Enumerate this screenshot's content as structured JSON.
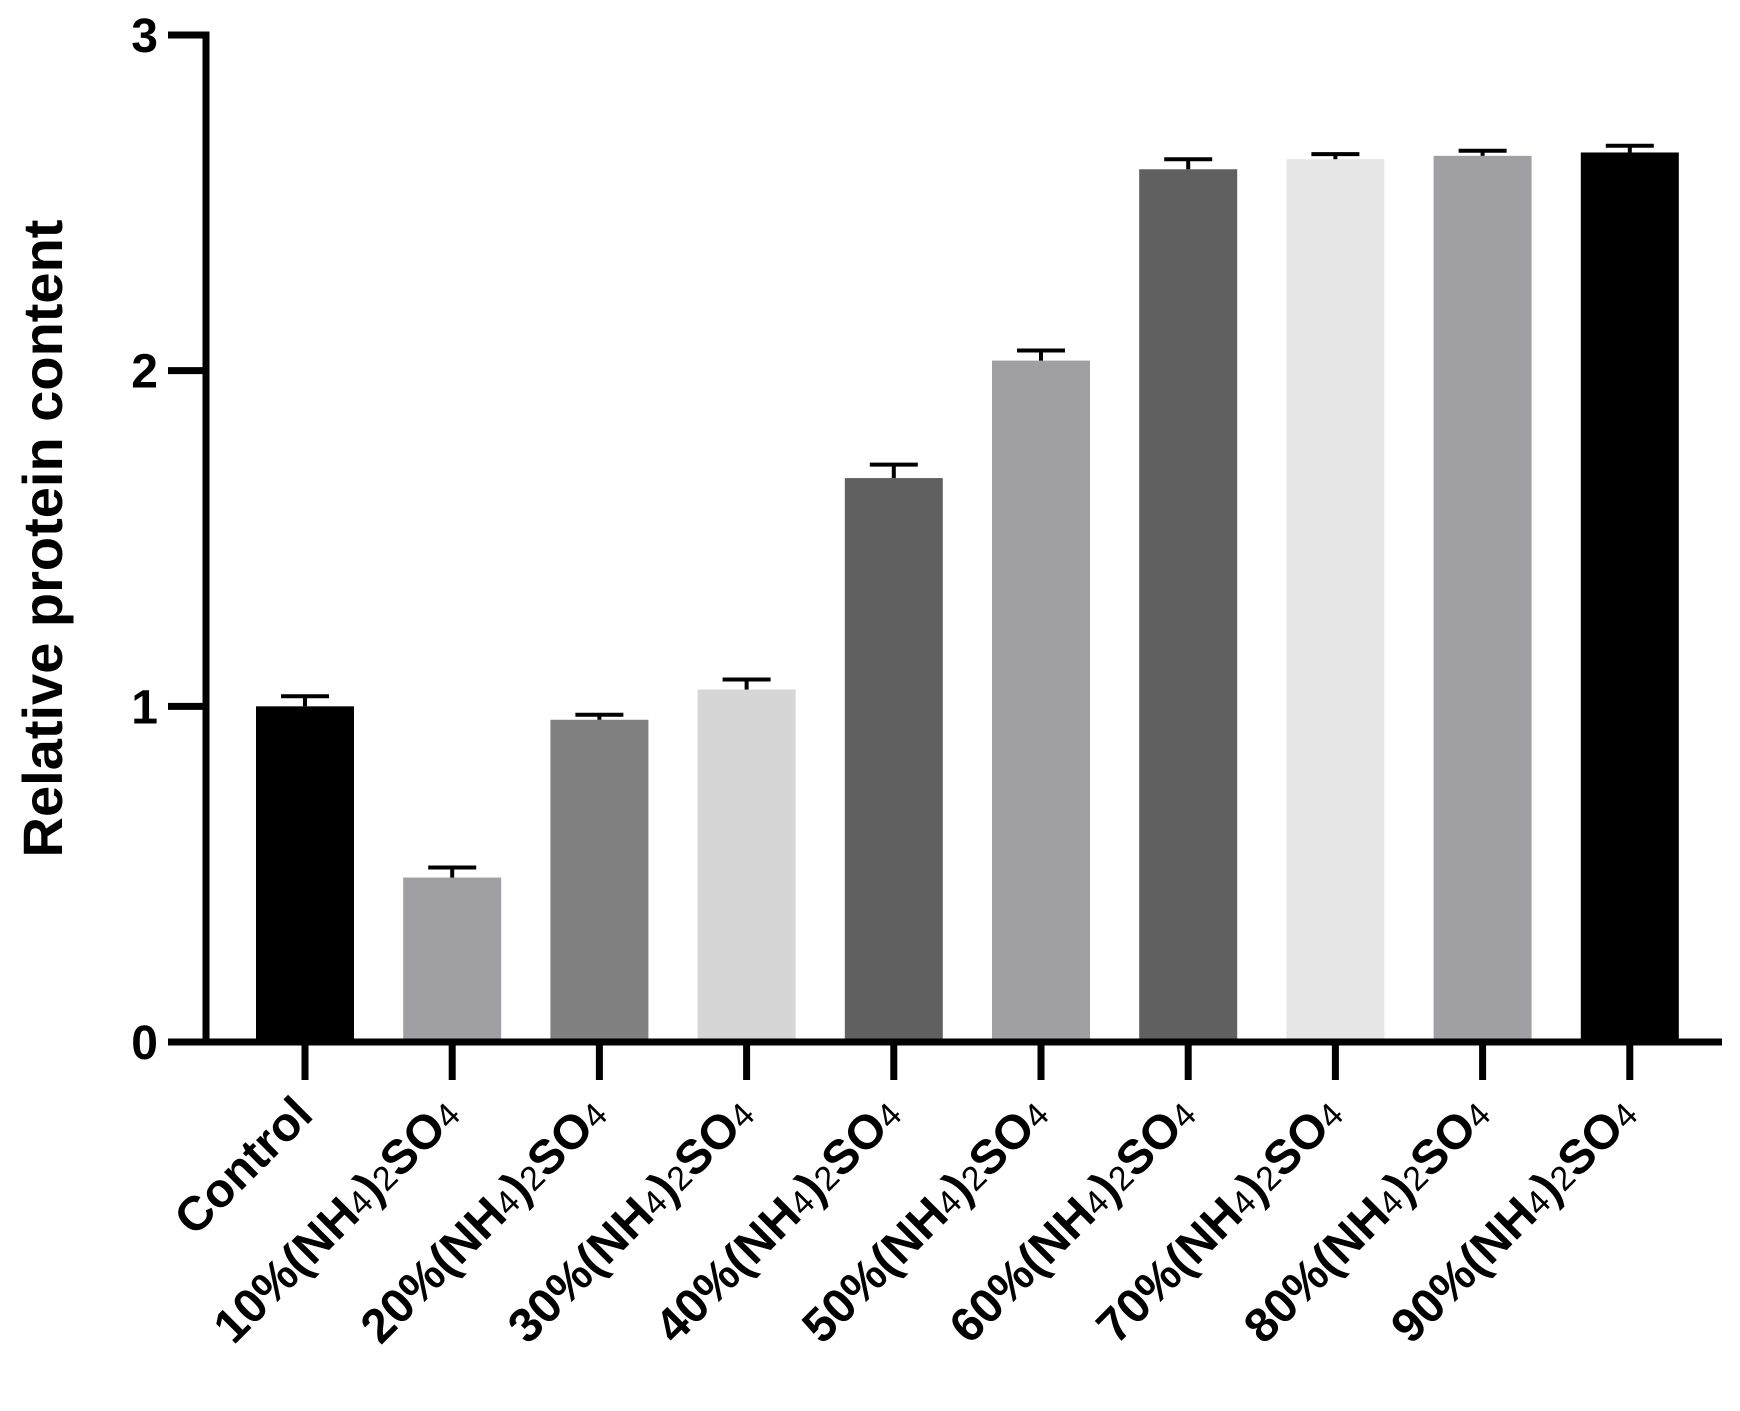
{
  "chart_data": {
    "type": "bar",
    "title": "",
    "xlabel": "",
    "ylabel": "Relative protein content",
    "ylim": [
      0,
      3
    ],
    "yticks": [
      "0",
      "1",
      "2",
      "3"
    ],
    "grid": false,
    "categories": [
      {
        "label": "Control",
        "parts": [
          {
            "t": "Control"
          }
        ]
      },
      {
        "label": "10%(NH4)2SO4",
        "parts": [
          {
            "t": "10%(NH"
          },
          {
            "t": "4",
            "sub": true
          },
          {
            "t": ")"
          },
          {
            "t": "2",
            "sub": true
          },
          {
            "t": "SO"
          },
          {
            "t": "4",
            "sub": true
          }
        ]
      },
      {
        "label": "20%(NH4)2SO4",
        "parts": [
          {
            "t": "20%(NH"
          },
          {
            "t": "4",
            "sub": true
          },
          {
            "t": ")"
          },
          {
            "t": "2",
            "sub": true
          },
          {
            "t": "SO"
          },
          {
            "t": "4",
            "sub": true
          }
        ]
      },
      {
        "label": "30%(NH4)2SO4",
        "parts": [
          {
            "t": "30%(NH"
          },
          {
            "t": "4",
            "sub": true
          },
          {
            "t": ")"
          },
          {
            "t": "2",
            "sub": true
          },
          {
            "t": "SO"
          },
          {
            "t": "4",
            "sub": true
          }
        ]
      },
      {
        "label": "40%(NH4)2SO4",
        "parts": [
          {
            "t": "40%(NH"
          },
          {
            "t": "4",
            "sub": true
          },
          {
            "t": ")"
          },
          {
            "t": "2",
            "sub": true
          },
          {
            "t": "SO"
          },
          {
            "t": "4",
            "sub": true
          }
        ]
      },
      {
        "label": "50%(NH4)2SO4",
        "parts": [
          {
            "t": "50%(NH"
          },
          {
            "t": "4",
            "sub": true
          },
          {
            "t": ")"
          },
          {
            "t": "2",
            "sub": true
          },
          {
            "t": "SO"
          },
          {
            "t": "4",
            "sub": true
          }
        ]
      },
      {
        "label": "60%(NH4)2SO4",
        "parts": [
          {
            "t": "60%(NH"
          },
          {
            "t": "4",
            "sub": true
          },
          {
            "t": ")"
          },
          {
            "t": "2",
            "sub": true
          },
          {
            "t": "SO"
          },
          {
            "t": "4",
            "sub": true
          }
        ]
      },
      {
        "label": "70%(NH4)2SO4",
        "parts": [
          {
            "t": "70%(NH"
          },
          {
            "t": "4",
            "sub": true
          },
          {
            "t": ")"
          },
          {
            "t": "2",
            "sub": true
          },
          {
            "t": "SO"
          },
          {
            "t": "4",
            "sub": true
          }
        ]
      },
      {
        "label": "80%(NH4)2SO4",
        "parts": [
          {
            "t": "80%(NH"
          },
          {
            "t": "4",
            "sub": true
          },
          {
            "t": ")"
          },
          {
            "t": "2",
            "sub": true
          },
          {
            "t": "SO"
          },
          {
            "t": "4",
            "sub": true
          }
        ]
      },
      {
        "label": "90%(NH4)2SO4",
        "parts": [
          {
            "t": "90%(NH"
          },
          {
            "t": "4",
            "sub": true
          },
          {
            "t": ")"
          },
          {
            "t": "2",
            "sub": true
          },
          {
            "t": "SO"
          },
          {
            "t": "4",
            "sub": true
          }
        ]
      }
    ],
    "values": [
      1.0,
      0.49,
      0.96,
      1.05,
      1.68,
      2.03,
      2.6,
      2.63,
      2.64,
      2.65
    ],
    "errors": [
      0.03,
      0.03,
      0.015,
      0.03,
      0.04,
      0.03,
      0.03,
      0.015,
      0.015,
      0.02
    ],
    "colors": [
      "#000000",
      "#a0a0a4",
      "#808080",
      "#d6d6d6",
      "#606060",
      "#a0a0a4",
      "#606060",
      "#e6e6e6",
      "#a0a0a4",
      "#000000"
    ]
  }
}
